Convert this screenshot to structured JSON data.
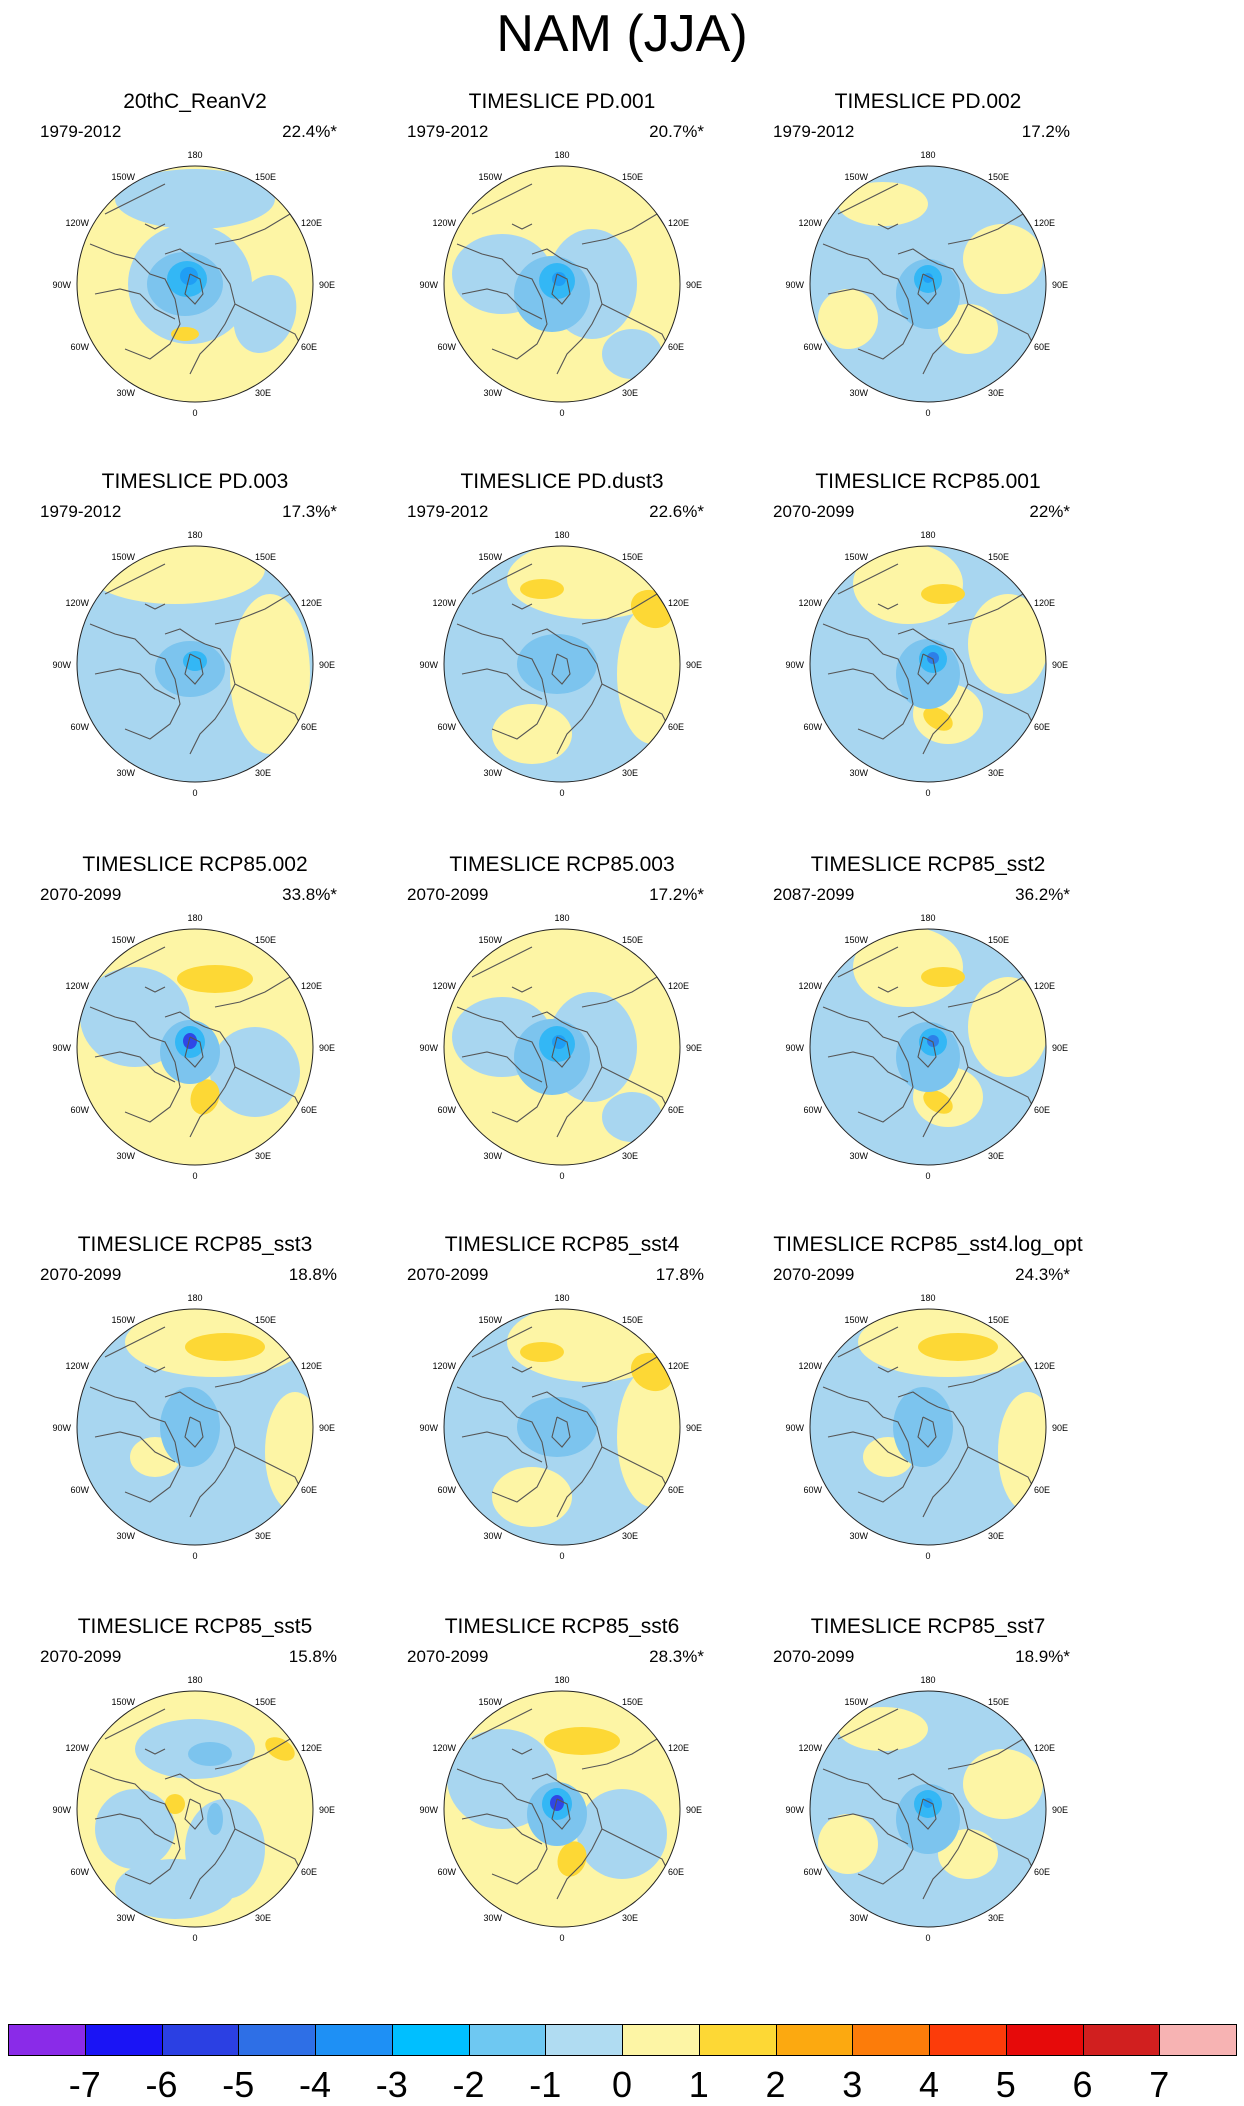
{
  "title": "NAM (JJA)",
  "lon_labels": {
    "n": "180",
    "nw": "150W",
    "ne": "150E",
    "wnw": "120W",
    "ene": "120E",
    "w": "90W",
    "e": "90E",
    "wsw": "60W",
    "ese": "60E",
    "sw": "30W",
    "se": "30E",
    "s": "0"
  },
  "colors": {
    "neg_light": "#a8d6f0",
    "neg1": "#7cc4ee",
    "neg2": "#33b7f5",
    "neg3": "#1f9ef5",
    "neg4": "#2d7fe8",
    "neg5": "#2f47e6",
    "pos_light": "#fdf5a5",
    "pos1": "#fdd835",
    "pos2": "#fbab16",
    "coast": "#555555"
  },
  "panels": [
    {
      "title": "20thC_ReanV2",
      "period": "1979-2012",
      "variance": "22.4%*",
      "pattern": "A"
    },
    {
      "title": "TIMESLICE PD.001",
      "period": "1979-2012",
      "variance": "20.7%*",
      "pattern": "B"
    },
    {
      "title": "TIMESLICE PD.002",
      "period": "1979-2012",
      "variance": "17.2%",
      "pattern": "C"
    },
    {
      "title": "TIMESLICE PD.003",
      "period": "1979-2012",
      "variance": "17.3%*",
      "pattern": "D"
    },
    {
      "title": "TIMESLICE PD.dust3",
      "period": "1979-2012",
      "variance": "22.6%*",
      "pattern": "E"
    },
    {
      "title": "TIMESLICE RCP85.001",
      "period": "2070-2099",
      "variance": "22%*",
      "pattern": "F"
    },
    {
      "title": "TIMESLICE RCP85.002",
      "period": "2070-2099",
      "variance": "33.8%*",
      "pattern": "G"
    },
    {
      "title": "TIMESLICE RCP85.003",
      "period": "2070-2099",
      "variance": "17.2%*",
      "pattern": "B"
    },
    {
      "title": "TIMESLICE RCP85_sst2",
      "period": "2087-2099",
      "variance": "36.2%*",
      "pattern": "F"
    },
    {
      "title": "TIMESLICE RCP85_sst3",
      "period": "2070-2099",
      "variance": "18.8%",
      "pattern": "H"
    },
    {
      "title": "TIMESLICE RCP85_sst4",
      "period": "2070-2099",
      "variance": "17.8%",
      "pattern": "E"
    },
    {
      "title": "TIMESLICE RCP85_sst4.log_opt",
      "period": "2070-2099",
      "variance": "24.3%*",
      "pattern": "H"
    },
    {
      "title": "TIMESLICE RCP85_sst5",
      "period": "2070-2099",
      "variance": "15.8%",
      "pattern": "I"
    },
    {
      "title": "TIMESLICE RCP85_sst6",
      "period": "2070-2099",
      "variance": "28.3%*",
      "pattern": "G"
    },
    {
      "title": "TIMESLICE RCP85_sst7",
      "period": "2070-2099",
      "variance": "18.9%*",
      "pattern": "C"
    }
  ],
  "colorbar": {
    "colors": [
      "#8a2be8",
      "#1a14f5",
      "#2b40e3",
      "#2e6fe6",
      "#1e90f5",
      "#00bfff",
      "#6ec8f2",
      "#b0dcf2",
      "#fdf5a5",
      "#fdd835",
      "#fca910",
      "#fc7c0a",
      "#fc3c0a",
      "#e60a0a",
      "#d11f1f",
      "#f7b3b3"
    ],
    "labels": [
      "-7",
      "-6",
      "-5",
      "-4",
      "-3",
      "-2",
      "-1",
      "0",
      "1",
      "2",
      "3",
      "4",
      "5",
      "6",
      "7"
    ]
  }
}
